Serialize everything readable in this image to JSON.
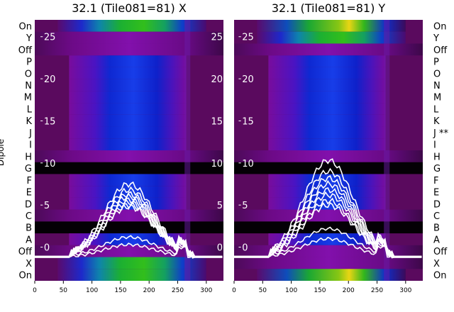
{
  "chart_data": [
    {
      "type": "heatmap",
      "title": "32.1 (Tile081=81) X",
      "ylabel": "Dipole",
      "row_labels": [
        "On",
        "Y",
        "Off",
        "P",
        "O",
        "N",
        "M",
        "L",
        "K",
        "J",
        "I",
        "H",
        "G",
        "F",
        "E",
        "D",
        "C",
        "B",
        "A",
        "Off",
        "X",
        "On"
      ],
      "x_ticks": [
        0,
        50,
        100,
        150,
        200,
        250,
        300
      ],
      "xlim": [
        0,
        330
      ],
      "overlay_ticks": [
        0,
        5,
        10,
        15,
        20,
        25
      ],
      "overlay_ylim": [
        -4,
        27
      ],
      "line_peaks": [
        7.5,
        6.8,
        6.3,
        6.0,
        5.6,
        5.3,
        5.0,
        4.8,
        1.2,
        0.3
      ],
      "colors": {
        "background": "#5a0a5e",
        "band_purple": "#7c0ca0",
        "band_blue": "#0a2ad8",
        "band_green": "#24c020",
        "line": "#ffffff",
        "black_row": "#000000"
      }
    },
    {
      "type": "heatmap",
      "title": "32.1 (Tile081=81) Y",
      "ylabel": "",
      "row_labels": [
        "On",
        "Y",
        "Off",
        "P",
        "O",
        "N",
        "M",
        "L",
        "K",
        "J **",
        "I",
        "H",
        "G",
        "F",
        "E",
        "D",
        "C",
        "B",
        "A",
        "Off",
        "X",
        "On"
      ],
      "x_ticks": [
        0,
        50,
        100,
        150,
        200,
        250,
        300
      ],
      "xlim": [
        0,
        330
      ],
      "overlay_ticks": [
        0,
        5,
        10,
        15,
        20,
        25
      ],
      "overlay_ylim": [
        -4,
        27
      ],
      "line_peaks": [
        10.3,
        9.0,
        8.2,
        7.5,
        6.8,
        6.2,
        5.5,
        5.0,
        2.2,
        1.0
      ],
      "colors": {
        "background": "#5a0a5e",
        "band_purple": "#7c0ca0",
        "band_blue": "#0a2ad8",
        "band_green": "#24c020",
        "line": "#ffffff",
        "black_row": "#000000"
      }
    }
  ]
}
